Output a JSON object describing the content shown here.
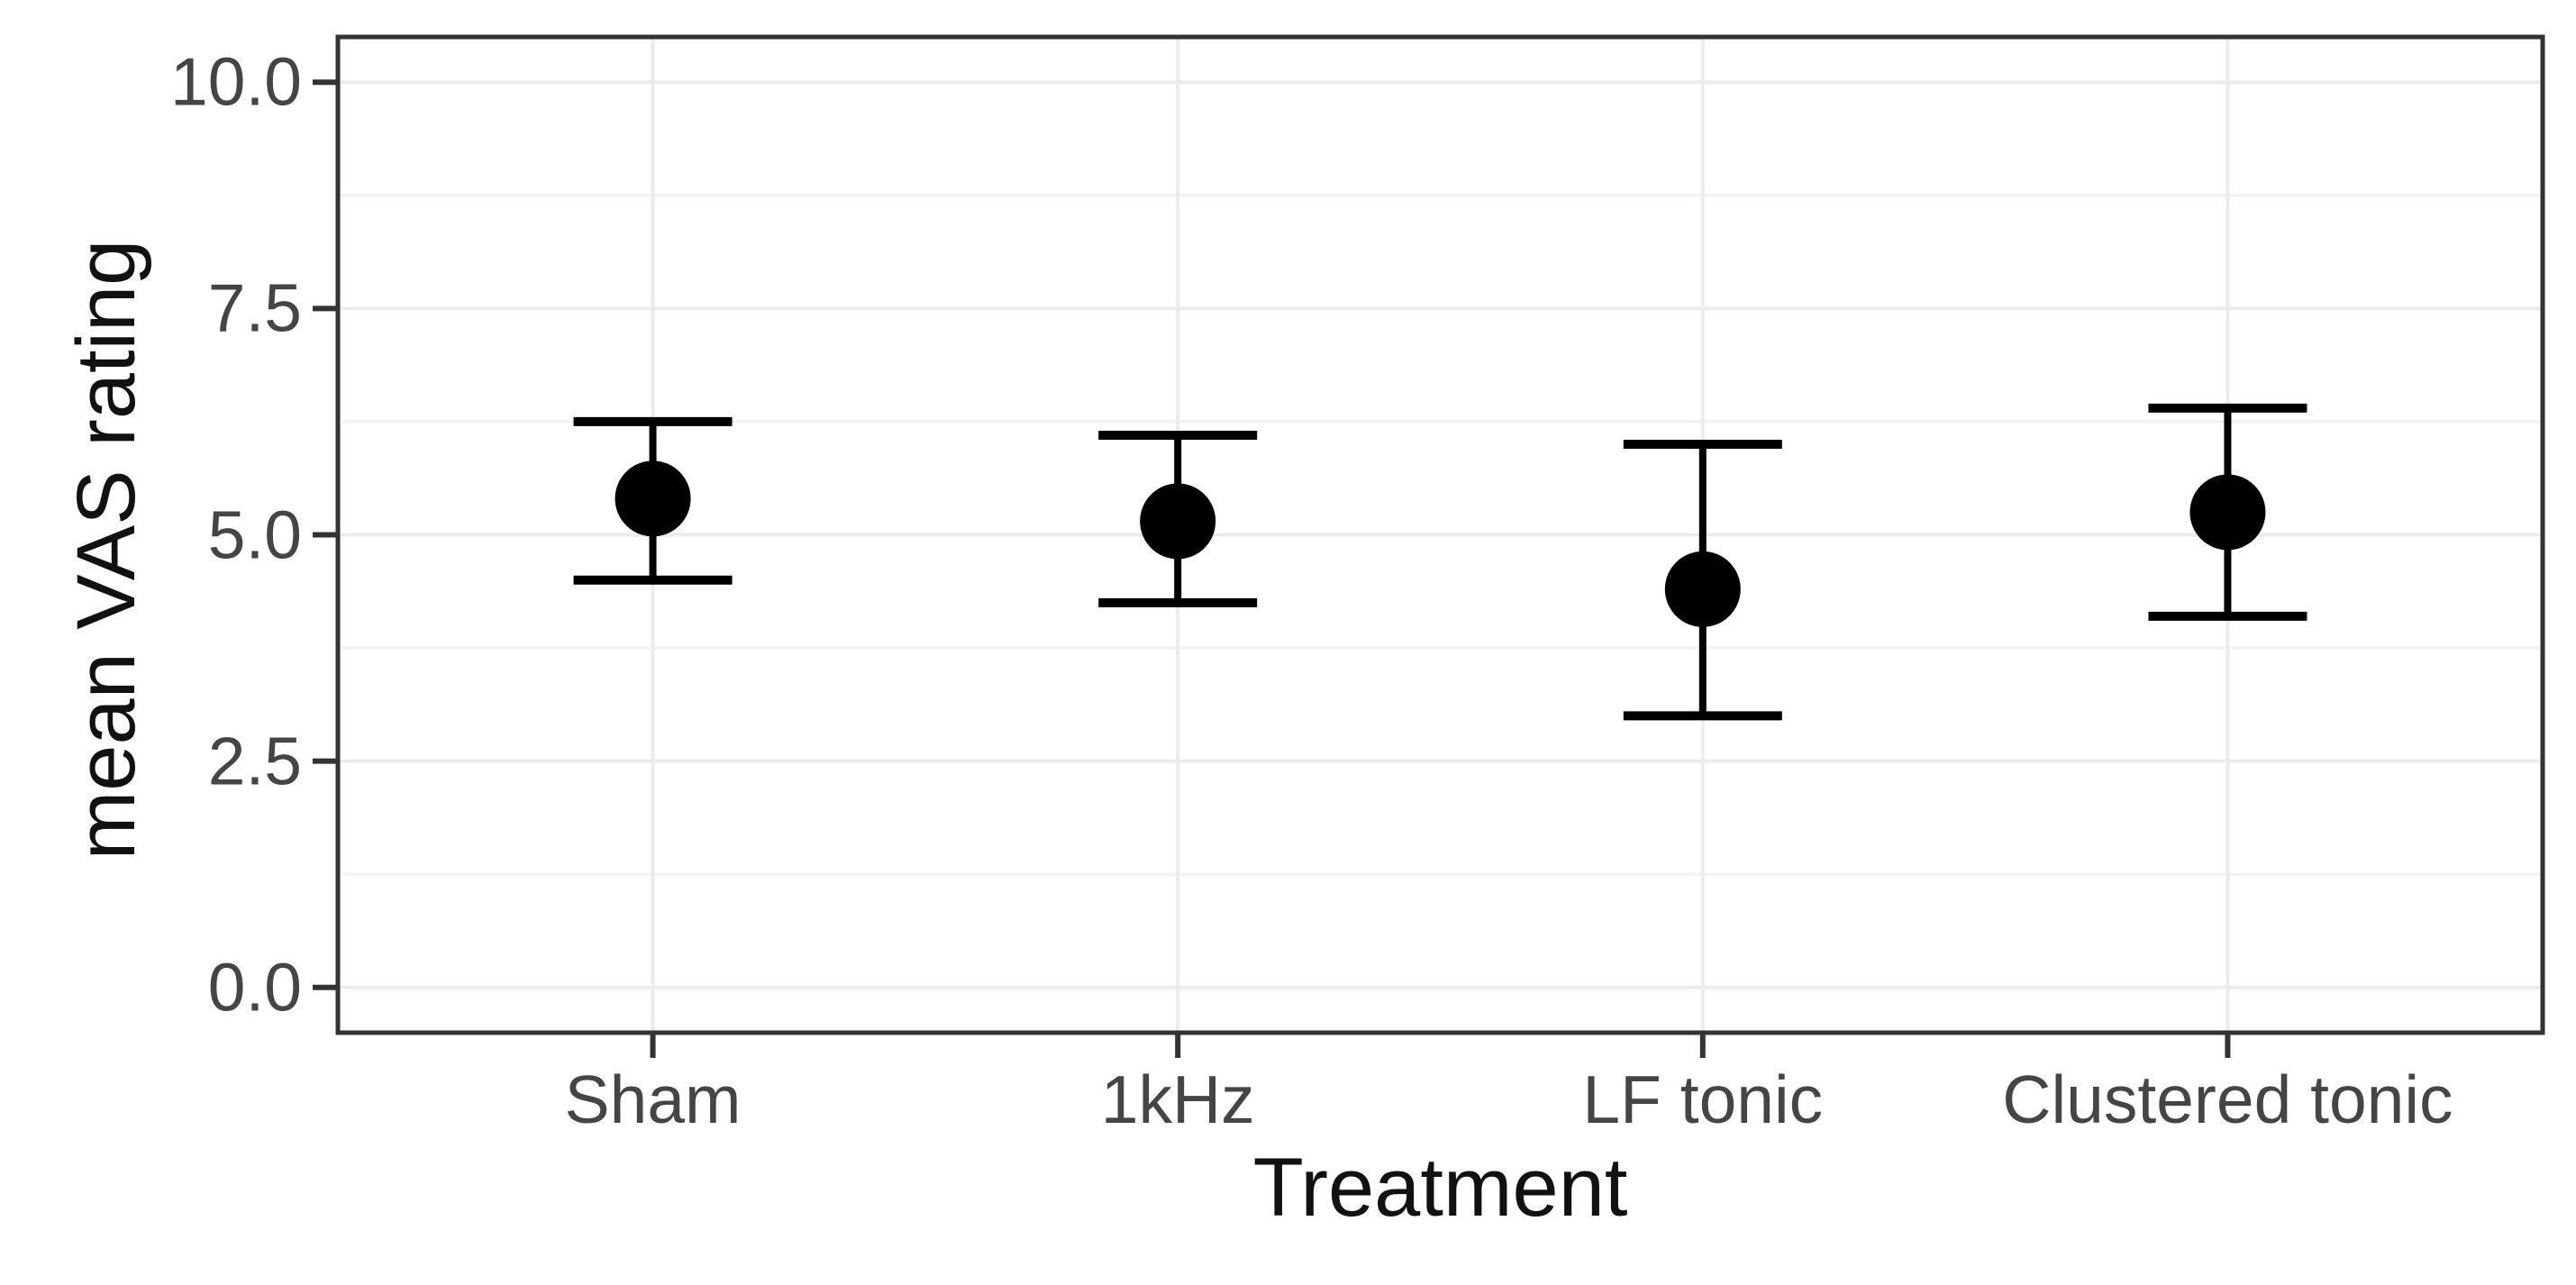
{
  "figure": {
    "kind": "pointrange-chart",
    "background": "#FFFFFF"
  },
  "chart_data": {
    "type": "scatter",
    "subtype": "point-with-error-bars",
    "title": "",
    "xlabel": "Treatment",
    "ylabel": "mean VAS rating",
    "categories": [
      "Sham",
      "1kHz",
      "LF tonic",
      "Clustered tonic"
    ],
    "series": [
      {
        "name": "mean VAS rating",
        "values": [
          5.4,
          5.15,
          4.4,
          5.25
        ],
        "error_upper": [
          6.25,
          6.1,
          6.0,
          6.4
        ],
        "error_lower": [
          4.5,
          4.25,
          3.0,
          4.1
        ]
      }
    ],
    "ylim": [
      0,
      10
    ],
    "yticks": [
      {
        "value": 10.0,
        "label": "10.0"
      },
      {
        "value": 7.5,
        "label": "7.5"
      },
      {
        "value": 5.0,
        "label": "5.0"
      },
      {
        "value": 2.5,
        "label": "2.5"
      },
      {
        "value": 0.0,
        "label": "0.0"
      }
    ],
    "yticks_minor": [
      8.75,
      6.25,
      3.75,
      1.25
    ],
    "grid": {
      "horizontal_major": true,
      "horizontal_minor": true,
      "vertical_major_at_categories": true,
      "vertical_minor": false
    },
    "legend": {
      "visible": false
    },
    "style": {
      "point_color": "#000000",
      "errorbar_color": "#000000",
      "grid_major_color": "#ECECEC",
      "grid_minor_color": "#F2F2F2",
      "panel_border_color": "#333333",
      "tick_color": "#333333",
      "tick_label_color": "#454545",
      "axis_title_color": "#111111",
      "background_color": "#FFFFFF"
    }
  }
}
